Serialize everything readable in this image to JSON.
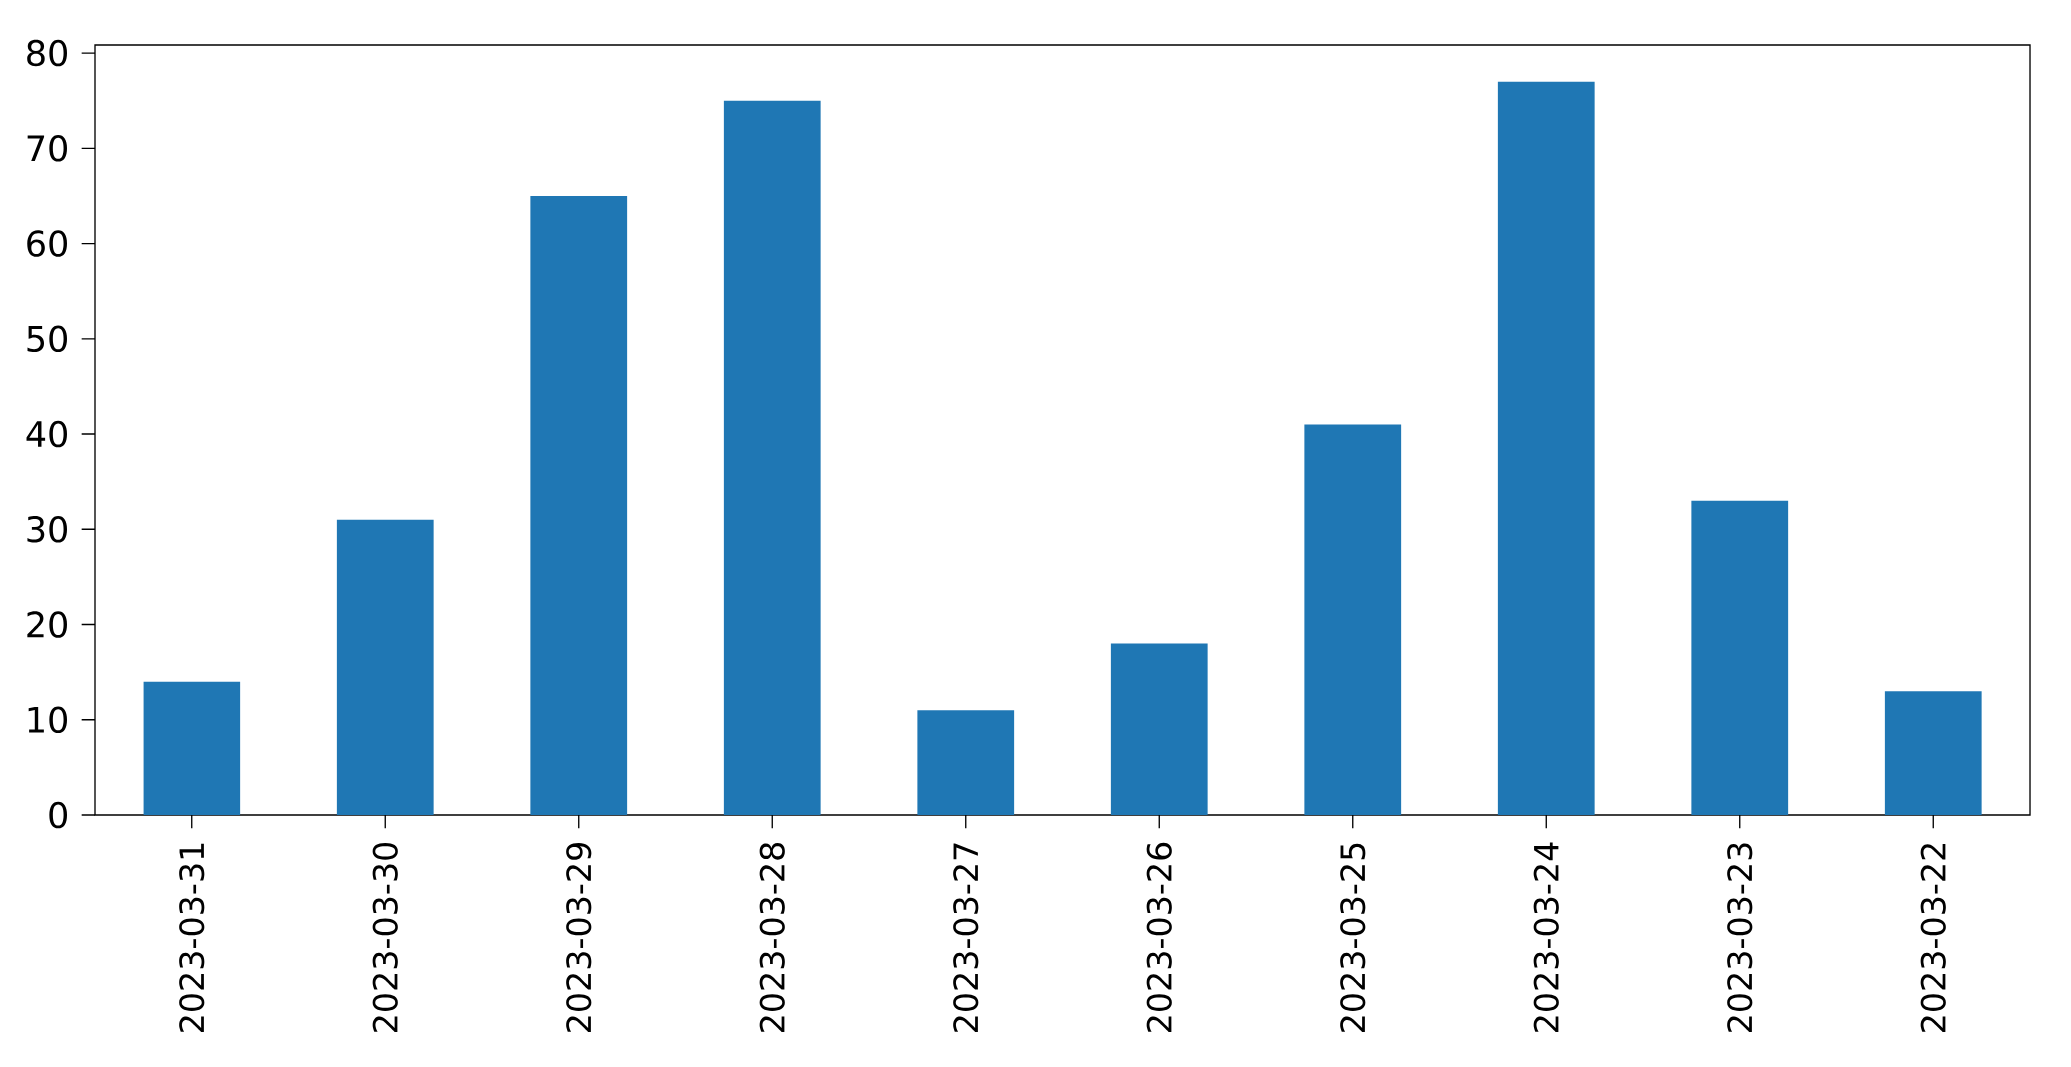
{
  "chart_data": {
    "type": "bar",
    "categories": [
      "2023-03-31",
      "2023-03-30",
      "2023-03-29",
      "2023-03-28",
      "2023-03-27",
      "2023-03-26",
      "2023-03-25",
      "2023-03-24",
      "2023-03-23",
      "2023-03-22"
    ],
    "values": [
      14,
      31,
      65,
      75,
      11,
      18,
      41,
      77,
      33,
      13
    ],
    "color": "#1f77b4",
    "ylim": [
      0,
      80.85
    ],
    "yticks": [
      0,
      10,
      20,
      30,
      40,
      50,
      60,
      70,
      80
    ],
    "grid": false
  }
}
